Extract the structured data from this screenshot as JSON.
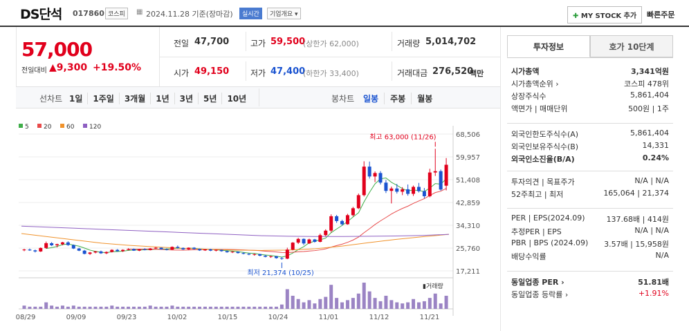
{
  "header": {
    "name": "DS단석",
    "code": "017860",
    "market": "코스피",
    "date": "2024.11.28 기준(장마감)",
    "realtime": "실시간",
    "company_info": "기업개요 ▾",
    "my_stock": "MY STOCK 추가",
    "quick_order": "빠른주문"
  },
  "price": {
    "current": "57,000",
    "change_label": "전일대비",
    "change": "9,300",
    "change_pct": "+19.50%"
  },
  "summary": {
    "prev_label": "전일",
    "prev": "47,700",
    "high_label": "고가",
    "high": "59,500",
    "upper_limit": "(상한가 62,000)",
    "volume_label": "거래량",
    "volume": "5,014,702",
    "open_label": "시가",
    "open": "49,150",
    "low_label": "저가",
    "low": "47,400",
    "lower_limit": "(하한가 33,400)",
    "amount_label": "거래대금",
    "amount": "276,520",
    "amount_unit": "백만"
  },
  "tabs": {
    "line_label": "선차트",
    "line": [
      "1일",
      "1주일",
      "3개월",
      "1년",
      "3년",
      "5년",
      "10년"
    ],
    "candle_label": "봉차트",
    "candle": [
      "일봉",
      "주봉",
      "월봉"
    ]
  },
  "chart_data": {
    "type": "candlestick",
    "legend": [
      {
        "name": "5",
        "color": "#3fae49"
      },
      {
        "name": "20",
        "color": "#e84a4a"
      },
      {
        "name": "60",
        "color": "#f0922b"
      },
      {
        "name": "120",
        "color": "#8e5fc2"
      }
    ],
    "y_ticks": [
      "68,506",
      "59,957",
      "51,408",
      "42,859",
      "34,310",
      "25,760",
      "17,211"
    ],
    "x_ticks": [
      "08/29",
      "09/09",
      "09/23",
      "10/02",
      "10/15",
      "10/24",
      "11/01",
      "11/12",
      "11/21"
    ],
    "high_annotation": "최고 63,000 (11/26)",
    "low_annotation": "최저 21,374 (10/25)",
    "volume_label": "거래량",
    "ylim": [
      17211,
      68506
    ],
    "candles": [
      [
        25000,
        25500,
        24600,
        25200
      ],
      [
        25200,
        25600,
        24700,
        24900
      ],
      [
        24900,
        25200,
        24100,
        24500
      ],
      [
        24500,
        26000,
        24300,
        25800
      ],
      [
        25800,
        28200,
        25500,
        27600
      ],
      [
        27600,
        28000,
        26500,
        26800
      ],
      [
        26800,
        27400,
        26000,
        27200
      ],
      [
        27200,
        28100,
        26800,
        27900
      ],
      [
        27900,
        28300,
        26600,
        26900
      ],
      [
        26900,
        27100,
        25400,
        25600
      ],
      [
        25600,
        25900,
        24600,
        24800
      ],
      [
        24800,
        25100,
        23400,
        23600
      ],
      [
        23600,
        24300,
        23200,
        24100
      ],
      [
        24100,
        24700,
        23800,
        24500
      ],
      [
        24500,
        24800,
        23600,
        23800
      ],
      [
        23800,
        24500,
        23500,
        24300
      ],
      [
        24300,
        25300,
        24100,
        25100
      ],
      [
        25100,
        25400,
        24400,
        24600
      ],
      [
        24600,
        25300,
        24300,
        25100
      ],
      [
        25100,
        25700,
        24900,
        25400
      ],
      [
        25400,
        25600,
        24700,
        24800
      ],
      [
        24800,
        25500,
        24600,
        25300
      ],
      [
        25300,
        25700,
        24900,
        25000
      ],
      [
        25000,
        25800,
        24900,
        25600
      ],
      [
        25600,
        26200,
        25400,
        25900
      ],
      [
        25900,
        26000,
        25200,
        25300
      ],
      [
        25300,
        25700,
        24900,
        25200
      ],
      [
        25200,
        26400,
        25100,
        26200
      ],
      [
        26200,
        26700,
        25600,
        25800
      ],
      [
        25800,
        26000,
        25100,
        25300
      ],
      [
        25300,
        26000,
        25100,
        25900
      ],
      [
        25900,
        26100,
        25200,
        25400
      ],
      [
        25400,
        25600,
        24700,
        24900
      ],
      [
        24900,
        25400,
        24700,
        25300
      ],
      [
        25300,
        25500,
        24600,
        24800
      ],
      [
        24800,
        25200,
        24500,
        25100
      ],
      [
        25100,
        25200,
        24400,
        24600
      ],
      [
        24600,
        24900,
        24000,
        24200
      ],
      [
        24200,
        24600,
        23900,
        24400
      ],
      [
        24400,
        24500,
        23700,
        23900
      ],
      [
        23900,
        24200,
        23400,
        23600
      ],
      [
        23600,
        23900,
        23100,
        23300
      ],
      [
        23300,
        23700,
        22900,
        23500
      ],
      [
        23500,
        23600,
        22700,
        22900
      ],
      [
        22900,
        23200,
        22300,
        22500
      ],
      [
        22500,
        22900,
        22100,
        22700
      ],
      [
        22700,
        22800,
        21800,
        22000
      ],
      [
        22000,
        22400,
        21374,
        21800
      ],
      [
        21800,
        25900,
        21600,
        25200
      ],
      [
        25200,
        28000,
        24900,
        27800
      ],
      [
        27800,
        29600,
        27300,
        29200
      ],
      [
        29200,
        29400,
        26900,
        27500
      ],
      [
        27500,
        29300,
        27300,
        29000
      ],
      [
        29000,
        29200,
        27800,
        28100
      ],
      [
        28100,
        31200,
        27900,
        30600
      ],
      [
        30600,
        32800,
        30200,
        32300
      ],
      [
        32300,
        38400,
        31600,
        37700
      ],
      [
        37700,
        38200,
        35200,
        35900
      ],
      [
        35900,
        36400,
        34200,
        34700
      ],
      [
        34700,
        38600,
        34500,
        38100
      ],
      [
        38100,
        41200,
        37600,
        40700
      ],
      [
        40700,
        46200,
        40400,
        45600
      ],
      [
        45600,
        58300,
        45100,
        56300
      ],
      [
        56300,
        58200,
        51800,
        52600
      ],
      [
        52600,
        54500,
        50500,
        53900
      ],
      [
        53900,
        54600,
        49600,
        50300
      ],
      [
        50300,
        51300,
        46400,
        47200
      ],
      [
        47200,
        48800,
        42500,
        48100
      ],
      [
        48100,
        49800,
        46200,
        46900
      ],
      [
        46900,
        48600,
        45600,
        47800
      ],
      [
        47800,
        49600,
        45400,
        46100
      ],
      [
        46100,
        49200,
        45300,
        48700
      ],
      [
        48700,
        50200,
        46600,
        47100
      ],
      [
        47100,
        48300,
        44400,
        45200
      ],
      [
        45200,
        55500,
        44800,
        54100
      ],
      [
        54100,
        63000,
        52800,
        54600
      ],
      [
        54600,
        55200,
        47300,
        47700
      ],
      [
        49150,
        59500,
        47400,
        57000
      ]
    ],
    "volumes": [
      3,
      2,
      2,
      2,
      6,
      3,
      2,
      3,
      2,
      3,
      2,
      2,
      2,
      2,
      2,
      2,
      3,
      2,
      2,
      2,
      2,
      2,
      2,
      3,
      2,
      2,
      2,
      3,
      2,
      2,
      2,
      2,
      2,
      2,
      2,
      2,
      2,
      2,
      2,
      2,
      2,
      2,
      2,
      2,
      2,
      2,
      2,
      4,
      18,
      12,
      9,
      6,
      8,
      5,
      9,
      11,
      22,
      10,
      6,
      8,
      10,
      14,
      24,
      16,
      10,
      7,
      12,
      8,
      6,
      5,
      6,
      9,
      6,
      7,
      10,
      14,
      5,
      12
    ]
  },
  "right": {
    "tab_active": "투자정보",
    "tab_other": "호가 10단계",
    "rows1": [
      {
        "label": "시가총액",
        "value": "3,341억원",
        "bold": true
      },
      {
        "label": "시가총액순위 ›",
        "value": "코스피 478위"
      },
      {
        "label": "상장주식수",
        "value": "5,861,404"
      },
      {
        "label": "액면가 | 매매단위",
        "value": "500원  |  1주"
      }
    ],
    "rows2": [
      {
        "label": "외국인한도주식수(A)",
        "value": "5,861,404"
      },
      {
        "label": "외국인보유주식수(B)",
        "value": "14,331"
      },
      {
        "label": "외국인소진율(B/A)",
        "value": "0.24%",
        "bold": true
      }
    ],
    "rows3": [
      {
        "label": "투자의견 | 목표주가",
        "value": "N/A  |  N/A"
      },
      {
        "label": "52주최고 | 최저",
        "value": "165,064  |  21,374"
      }
    ],
    "rows4": [
      {
        "label": "PER | EPS(2024.09)",
        "value": "137.68배  |  414원"
      },
      {
        "label": "추정PER | EPS",
        "value": "N/A  |  N/A"
      },
      {
        "label": "PBR | BPS (2024.09)",
        "value": "3.57배  |  15,958원"
      },
      {
        "label": "배당수익률",
        "value": "N/A"
      }
    ],
    "rows5": [
      {
        "label": "동일업종 PER ›",
        "value": "51.81배",
        "bold": true
      },
      {
        "label": "동일업종 등락률 ›",
        "value": "+1.91%",
        "red": true
      }
    ]
  }
}
